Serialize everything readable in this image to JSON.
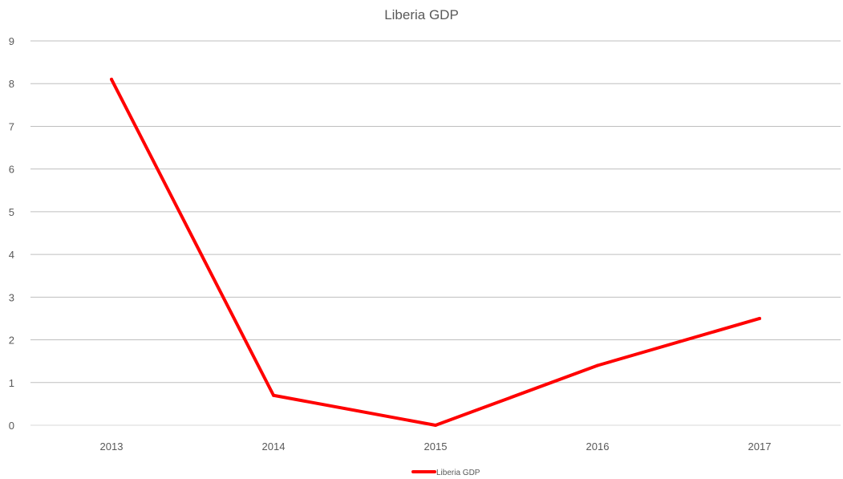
{
  "chart_data": {
    "type": "line",
    "title": "Liberia GDP",
    "xlabel": "",
    "ylabel": "",
    "categories": [
      "2013",
      "2014",
      "2015",
      "2016",
      "2017"
    ],
    "series": [
      {
        "name": "Liberia GDP",
        "values": [
          8.1,
          0.7,
          0.0,
          1.4,
          2.5
        ],
        "color": "#ff0000"
      }
    ],
    "ylim": [
      0,
      9
    ],
    "yticks": [
      0,
      1,
      2,
      3,
      4,
      5,
      6,
      7,
      8,
      9
    ],
    "grid": true,
    "legend": "bottom"
  }
}
